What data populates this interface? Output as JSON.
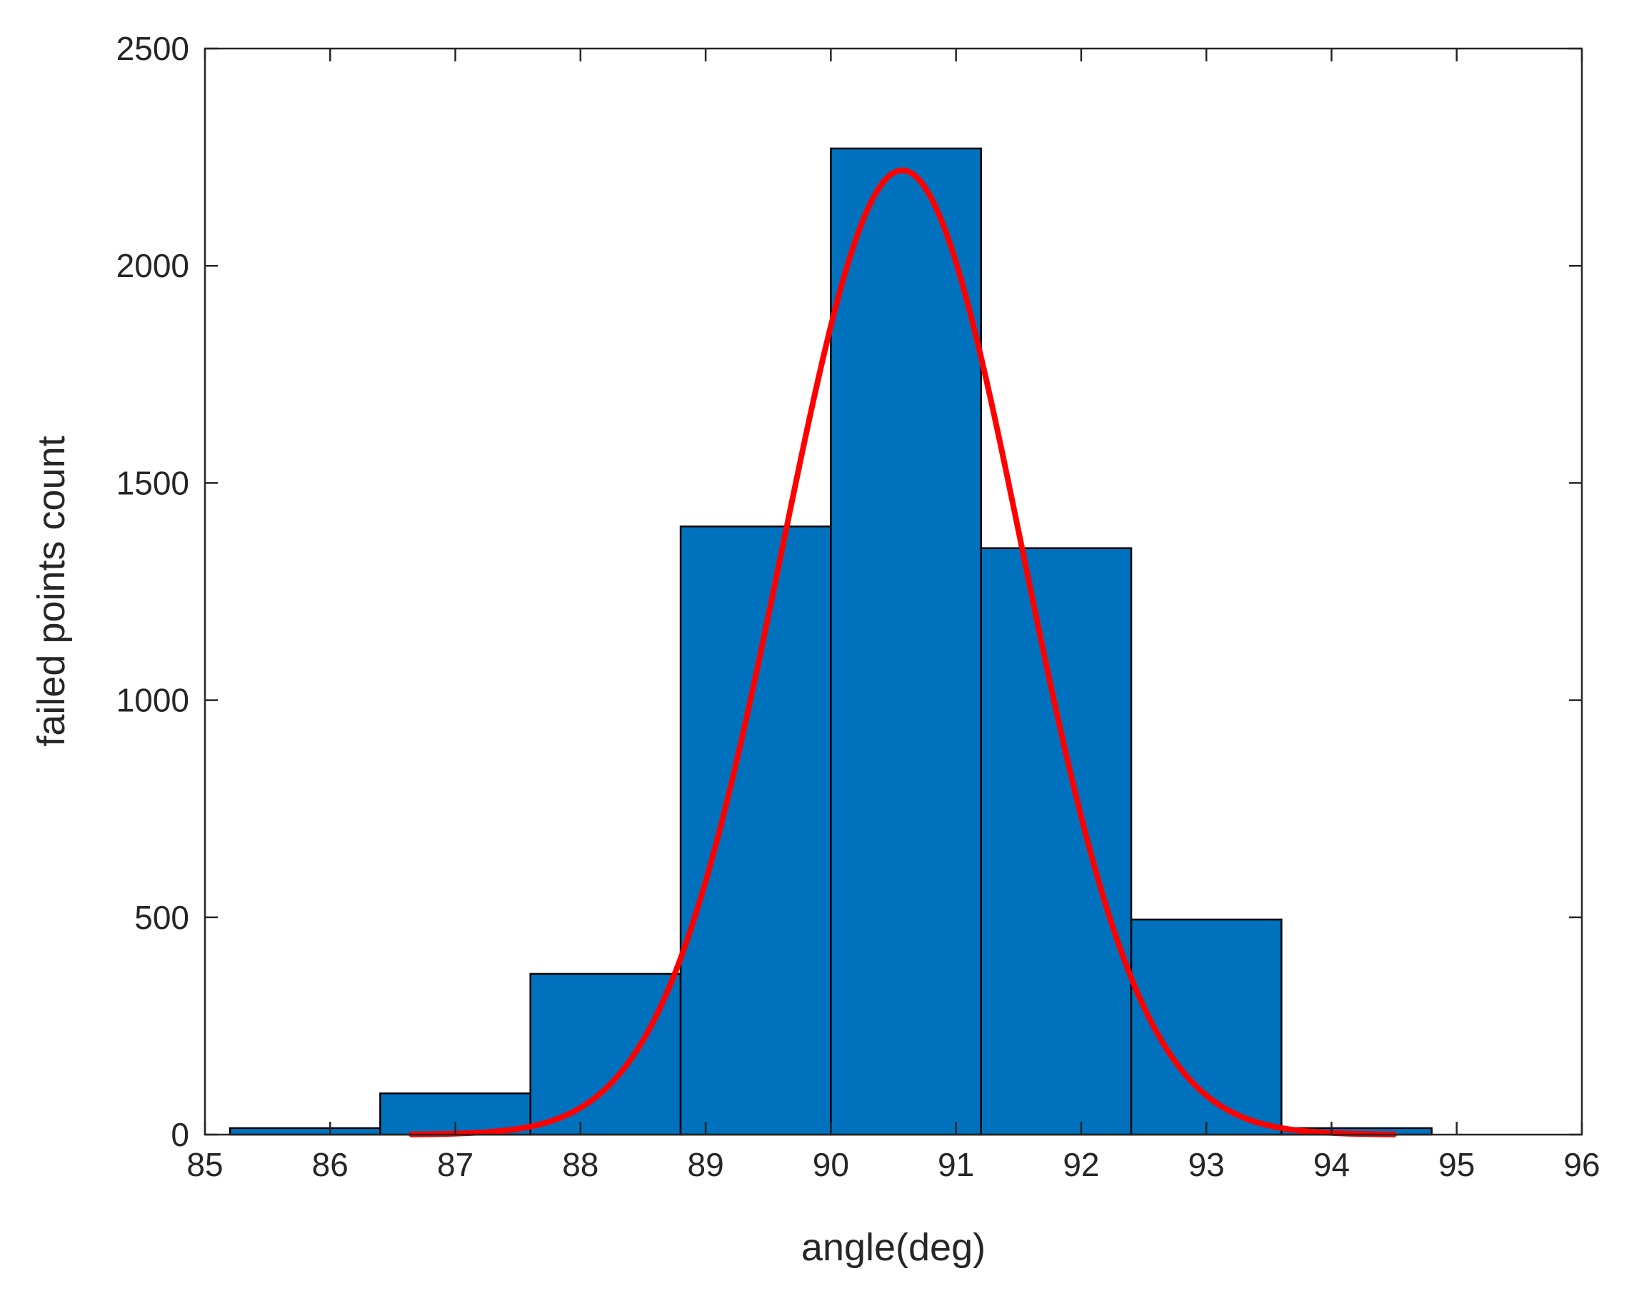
{
  "chart_data": {
    "type": "bar",
    "xlabel": "angle(deg)",
    "ylabel": "failed points count",
    "xlim": [
      85,
      96
    ],
    "ylim": [
      0,
      2500
    ],
    "xticks": [
      85,
      86,
      87,
      88,
      89,
      90,
      91,
      92,
      93,
      94,
      95,
      96
    ],
    "yticks": [
      0,
      500,
      1000,
      1500,
      2000,
      2500
    ],
    "grid": false,
    "bins": [
      {
        "x0": 85.2,
        "x1": 86.4,
        "count": 15
      },
      {
        "x0": 86.4,
        "x1": 87.6,
        "count": 95
      },
      {
        "x0": 87.6,
        "x1": 88.8,
        "count": 370
      },
      {
        "x0": 88.8,
        "x1": 90.0,
        "count": 1400
      },
      {
        "x0": 90.0,
        "x1": 91.2,
        "count": 2270
      },
      {
        "x0": 91.2,
        "x1": 92.4,
        "count": 1350
      },
      {
        "x0": 92.4,
        "x1": 93.6,
        "count": 495
      },
      {
        "x0": 93.6,
        "x1": 94.8,
        "count": 15
      }
    ],
    "fit_curve": {
      "type": "normal",
      "mean": 90.57,
      "sigma": 0.96,
      "peak": 2220,
      "x_range": [
        86.65,
        94.5
      ],
      "color": "#ff0000"
    },
    "bar_color": "#0072bd",
    "edge_color": "#000000"
  }
}
